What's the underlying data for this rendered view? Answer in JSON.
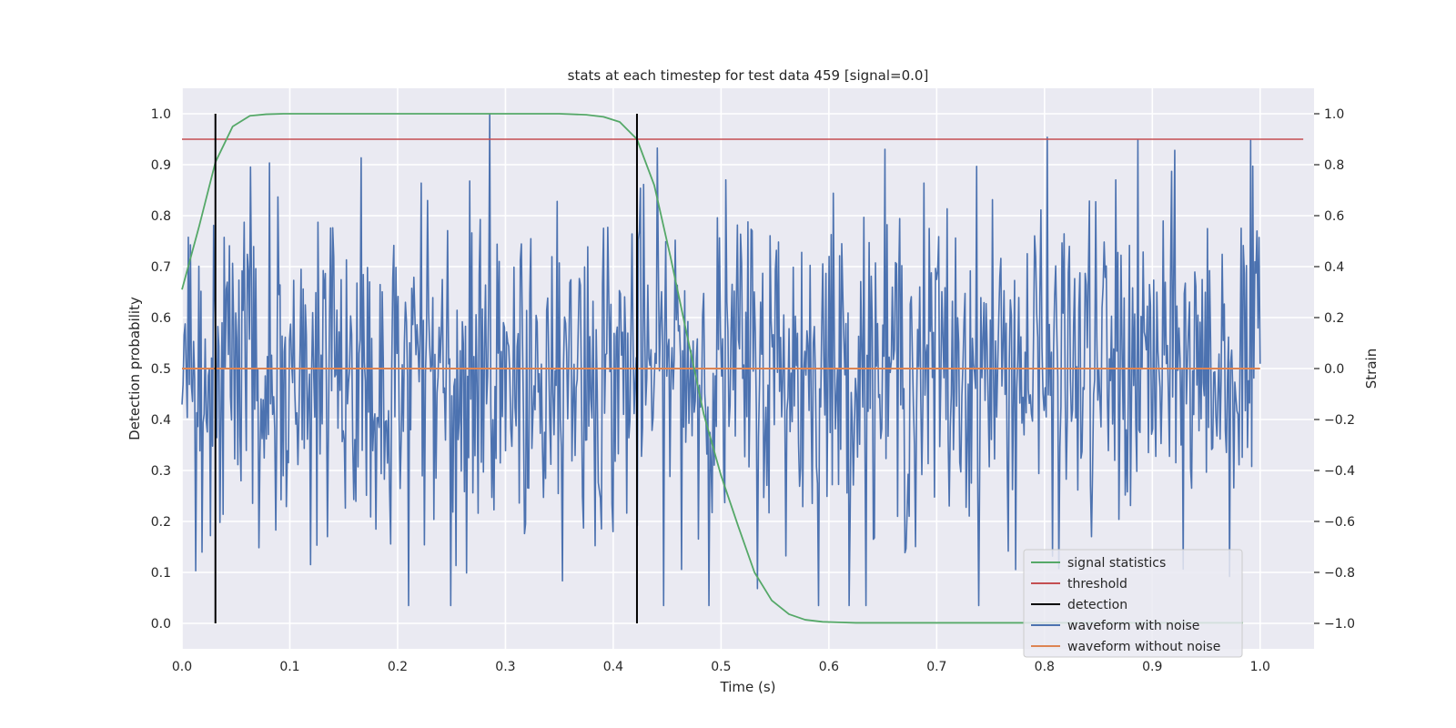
{
  "chart_data": {
    "type": "line",
    "title": "stats at each timestep for test data 459 [signal=0.0]",
    "xlabel": "Time (s)",
    "ylabel_left": "Detection probability",
    "ylabel_right": "Strain",
    "xlim": [
      0.0,
      1.05
    ],
    "ylim_left": [
      -0.05,
      1.05
    ],
    "ylim_right": [
      -1.1,
      1.1
    ],
    "x_ticks": [
      0.0,
      0.1,
      0.2,
      0.3,
      0.4,
      0.5,
      0.6,
      0.7,
      0.8,
      0.9,
      1.0
    ],
    "x_tick_labels": [
      "0.0",
      "0.1",
      "0.2",
      "0.3",
      "0.4",
      "0.5",
      "0.6",
      "0.7",
      "0.8",
      "0.9",
      "1.0"
    ],
    "y_ticks_left": [
      0.0,
      0.1,
      0.2,
      0.3,
      0.4,
      0.5,
      0.6,
      0.7,
      0.8,
      0.9,
      1.0
    ],
    "y_tick_labels_left": [
      "0.0",
      "0.1",
      "0.2",
      "0.3",
      "0.4",
      "0.5",
      "0.6",
      "0.7",
      "0.8",
      "0.9",
      "1.0"
    ],
    "y_ticks_right": [
      -1.0,
      -0.8,
      -0.6,
      -0.4,
      -0.2,
      0.0,
      0.2,
      0.4,
      0.6,
      0.8,
      1.0
    ],
    "y_tick_labels_right": [
      "−1.0",
      "−0.8",
      "−0.6",
      "−0.4",
      "−0.2",
      "0.0",
      "0.2",
      "0.4",
      "0.6",
      "0.8",
      "1.0"
    ],
    "grid": true,
    "legend_position": "lower-right",
    "background_color": "#eaeaf2",
    "series": [
      {
        "name": "signal statistics",
        "axis": "left",
        "color": "#55a868",
        "x": [
          0.0,
          0.016,
          0.031,
          0.047,
          0.063,
          0.078,
          0.094,
          0.109,
          0.125,
          0.2,
          0.3,
          0.35,
          0.375,
          0.391,
          0.406,
          0.422,
          0.438,
          0.453,
          0.469,
          0.484,
          0.5,
          0.516,
          0.531,
          0.547,
          0.563,
          0.578,
          0.594,
          0.609,
          0.625,
          0.7,
          0.8,
          0.9,
          0.984
        ],
        "y": [
          0.655,
          0.78,
          0.905,
          0.975,
          0.996,
          0.999,
          1.0,
          1.0,
          1.0,
          1.0,
          1.0,
          1.0,
          0.998,
          0.994,
          0.984,
          0.95,
          0.86,
          0.72,
          0.56,
          0.41,
          0.29,
          0.19,
          0.1,
          0.045,
          0.018,
          0.007,
          0.003,
          0.002,
          0.001,
          0.001,
          0.001,
          0.001,
          0.001
        ]
      },
      {
        "name": "threshold",
        "axis": "left",
        "color": "#c44e52",
        "x": [
          0.0,
          1.04
        ],
        "y": [
          0.95,
          0.95
        ]
      },
      {
        "name": "detection",
        "axis": "left",
        "color": "#000000",
        "vlines": [
          0.031,
          0.422
        ],
        "ymin": 0.0,
        "ymax": 1.0
      },
      {
        "name": "waveform with noise",
        "axis": "right",
        "color": "#4c72b0",
        "x_start": 0.0,
        "x_end": 1.0,
        "n_points": 1024,
        "amplitude_range": [
          -0.93,
          1.0
        ]
      },
      {
        "name": "waveform without noise",
        "axis": "right",
        "color": "#dd8452",
        "x": [
          0.0,
          1.0
        ],
        "y": [
          0.0,
          0.0
        ]
      }
    ]
  }
}
